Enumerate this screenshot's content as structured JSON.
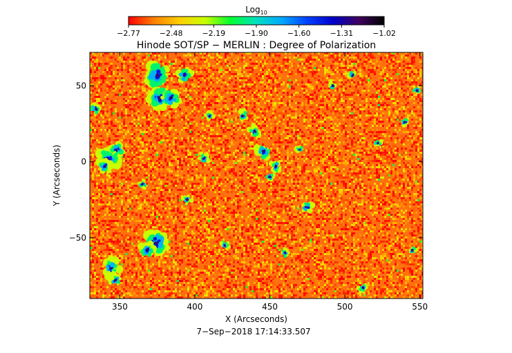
{
  "chart_data": {
    "type": "heatmap",
    "title": "Hinode SOT/SP − MERLIN : Degree of Polarization",
    "subtitle": "7−Sep−2018 17:14:33.507",
    "xlabel": "X (Arcseconds)",
    "ylabel": "Y (Arcseconds)",
    "xlim": [
      330,
      552
    ],
    "ylim": [
      -90,
      72
    ],
    "x_ticks": [
      350,
      400,
      450,
      500,
      550
    ],
    "y_ticks": [
      50,
      0,
      -50
    ],
    "colorbar": {
      "title": "Log",
      "title_sub": "10",
      "range": [
        -2.77,
        -1.02
      ],
      "tick_labels": [
        "−2.77",
        "−2.48",
        "−2.19",
        "−1.90",
        "−1.60",
        "−1.31",
        "−1.02"
      ],
      "colormap": [
        "#ff0000",
        "#ff8000",
        "#ffd000",
        "#c8ff00",
        "#00ff30",
        "#00e0c0",
        "#00a8ff",
        "#0040ff",
        "#0000c8",
        "#400060",
        "#000000"
      ]
    },
    "background_value_range": [
      -2.77,
      -2.35
    ],
    "high_polarization_regions": [
      {
        "x": 375,
        "y": 57,
        "radius": 8
      },
      {
        "x": 393,
        "y": 57,
        "radius": 5
      },
      {
        "x": 376,
        "y": 42,
        "radius": 7
      },
      {
        "x": 384,
        "y": 42,
        "radius": 6
      },
      {
        "x": 342,
        "y": 2,
        "radius": 7
      },
      {
        "x": 348,
        "y": 8,
        "radius": 5
      },
      {
        "x": 340,
        "y": -3,
        "radius": 5
      },
      {
        "x": 334,
        "y": 35,
        "radius": 4
      },
      {
        "x": 374,
        "y": -53,
        "radius": 8
      },
      {
        "x": 368,
        "y": -58,
        "radius": 5
      },
      {
        "x": 344,
        "y": -70,
        "radius": 6
      },
      {
        "x": 347,
        "y": -78,
        "radius": 4
      },
      {
        "x": 446,
        "y": 7,
        "radius": 5
      },
      {
        "x": 440,
        "y": 20,
        "radius": 4
      },
      {
        "x": 432,
        "y": 30,
        "radius": 4
      },
      {
        "x": 454,
        "y": -3,
        "radius": 4
      },
      {
        "x": 450,
        "y": -10,
        "radius": 3
      },
      {
        "x": 406,
        "y": 2,
        "radius": 4
      },
      {
        "x": 410,
        "y": 30,
        "radius": 3
      },
      {
        "x": 475,
        "y": -30,
        "radius": 4
      },
      {
        "x": 470,
        "y": 8,
        "radius": 3
      },
      {
        "x": 492,
        "y": 50,
        "radius": 3
      },
      {
        "x": 505,
        "y": 57,
        "radius": 3
      },
      {
        "x": 548,
        "y": 47,
        "radius": 3
      },
      {
        "x": 540,
        "y": 26,
        "radius": 3
      },
      {
        "x": 522,
        "y": 12,
        "radius": 3
      },
      {
        "x": 545,
        "y": -58,
        "radius": 3
      },
      {
        "x": 512,
        "y": -83,
        "radius": 3
      },
      {
        "x": 365,
        "y": -15,
        "radius": 3
      },
      {
        "x": 395,
        "y": -25,
        "radius": 3
      },
      {
        "x": 420,
        "y": -55,
        "radius": 3
      },
      {
        "x": 460,
        "y": -60,
        "radius": 3
      }
    ]
  }
}
